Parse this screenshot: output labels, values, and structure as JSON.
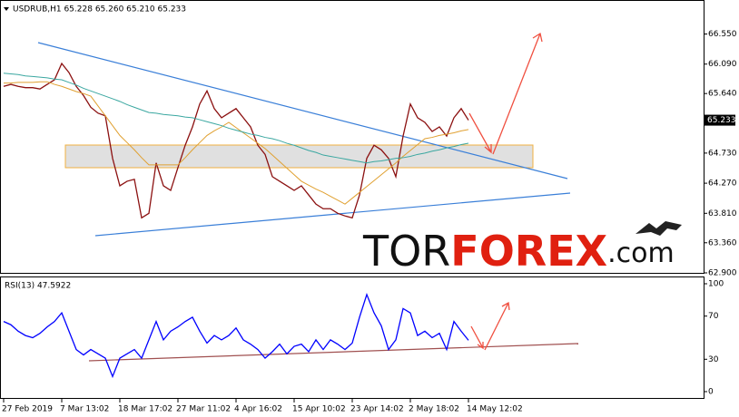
{
  "chart_data": [
    {
      "type": "line",
      "title": "USDRUB,H1 65.228 65.260 65.210 65.233",
      "series": [
        {
          "color": "#8b1010",
          "values": [
            65.75,
            65.78,
            65.75,
            65.73,
            65.73,
            65.71,
            65.78,
            65.85,
            66.1,
            65.96,
            65.75,
            65.61,
            65.43,
            65.34,
            65.3,
            64.65,
            64.23,
            64.3,
            64.33,
            63.74,
            63.81,
            64.58,
            64.23,
            64.16,
            64.51,
            64.85,
            65.13,
            65.48,
            65.68,
            65.41,
            65.27,
            65.34,
            65.41,
            65.27,
            65.13,
            64.85,
            64.71,
            64.37,
            64.3,
            64.23,
            64.16,
            64.23,
            64.09,
            63.95,
            63.88,
            63.88,
            63.81,
            63.77,
            63.74,
            64.09,
            64.65,
            64.85,
            64.78,
            64.65,
            64.37,
            64.99,
            65.48,
            65.27,
            65.2,
            65.06,
            65.13,
            64.99,
            65.27,
            65.41,
            65.233
          ]
        },
        {
          "color": "#e0a030",
          "values": [
            65.8,
            65.8,
            65.81,
            65.81,
            65.81,
            65.82,
            65.82,
            65.78,
            65.75,
            65.71,
            65.67,
            65.64,
            65.6,
            65.45,
            65.3,
            65.15,
            65.0,
            64.89,
            64.78,
            64.66,
            64.55,
            64.55,
            64.55,
            64.55,
            64.55,
            64.66,
            64.78,
            64.89,
            65.0,
            65.07,
            65.13,
            65.2,
            65.12,
            65.04,
            64.96,
            64.88,
            64.8,
            64.7,
            64.6,
            64.5,
            64.4,
            64.3,
            64.24,
            64.18,
            64.13,
            64.07,
            64.01,
            63.95,
            64.04,
            64.13,
            64.22,
            64.31,
            64.4,
            64.49,
            64.58,
            64.68,
            64.77,
            64.86,
            64.95,
            64.97,
            65.0,
            65.02,
            65.04,
            65.07,
            65.09
          ]
        },
        {
          "color": "#3aa7a0",
          "values": [
            65.95,
            65.94,
            65.93,
            65.91,
            65.9,
            65.89,
            65.88,
            65.86,
            65.85,
            65.81,
            65.77,
            65.72,
            65.68,
            65.64,
            65.6,
            65.56,
            65.52,
            65.47,
            65.43,
            65.39,
            65.35,
            65.34,
            65.32,
            65.31,
            65.3,
            65.28,
            65.27,
            65.24,
            65.21,
            65.18,
            65.15,
            65.11,
            65.08,
            65.05,
            65.02,
            65.0,
            64.97,
            64.95,
            64.92,
            64.88,
            64.85,
            64.81,
            64.77,
            64.74,
            64.7,
            64.68,
            64.66,
            64.64,
            64.62,
            64.6,
            64.58,
            64.6,
            64.61,
            64.63,
            64.65,
            64.66,
            64.68,
            64.71,
            64.73,
            64.76,
            64.78,
            64.81,
            64.83,
            64.86,
            64.88
          ]
        }
      ],
      "ylim": [
        62.9,
        67.0
      ],
      "yticks": [
        {
          "value": 62.9,
          "label": "62.900"
        },
        {
          "value": 63.36,
          "label": "63.360"
        },
        {
          "value": 63.81,
          "label": "63.810"
        },
        {
          "value": 64.27,
          "label": "64.270"
        },
        {
          "value": 64.73,
          "label": "64.730"
        },
        {
          "value": 65.64,
          "label": "65.640"
        },
        {
          "value": 66.09,
          "label": "66.090"
        },
        {
          "value": 66.55,
          "label": "66.550"
        }
      ]
    },
    {
      "type": "line",
      "title": "RSI(13) 47.5922",
      "categories": [
        "27 Feb 2019",
        null,
        null,
        null,
        null,
        null,
        null,
        null,
        "7 Mar 13:02",
        null,
        null,
        null,
        null,
        null,
        null,
        null,
        "18 Mar 17:02",
        null,
        null,
        null,
        null,
        null,
        null,
        null,
        "27 Mar 11:02",
        null,
        null,
        null,
        null,
        null,
        null,
        null,
        "4 Apr 16:02",
        null,
        null,
        null,
        null,
        null,
        null,
        null,
        "15 Apr 10:02",
        null,
        null,
        null,
        null,
        null,
        null,
        null,
        "23 Apr 14:02",
        null,
        null,
        null,
        null,
        null,
        null,
        null,
        "2 May 18:02",
        null,
        null,
        null,
        null,
        null,
        null,
        null,
        "14 May 12:02"
      ],
      "series": [
        {
          "color": "#0000ff",
          "values": [
            65,
            62,
            56,
            52,
            50,
            54,
            60,
            65,
            73,
            56,
            39,
            34,
            39,
            35,
            31,
            14,
            31,
            35,
            39,
            31,
            48,
            65,
            48,
            56,
            60,
            65,
            69,
            56,
            45,
            52,
            48,
            52,
            59,
            48,
            44,
            39,
            31,
            37,
            44,
            35,
            42,
            44,
            37,
            48,
            39,
            48,
            44,
            39,
            45,
            69,
            90,
            73,
            61,
            39,
            48,
            77,
            73,
            52,
            56,
            50,
            54,
            39,
            65,
            56,
            47.5922
          ]
        }
      ],
      "ylim": [
        0,
        100
      ],
      "yticks": [
        0,
        30,
        70,
        100
      ]
    }
  ],
  "watermark": [
    "TOR",
    "FOREX",
    ".com"
  ]
}
